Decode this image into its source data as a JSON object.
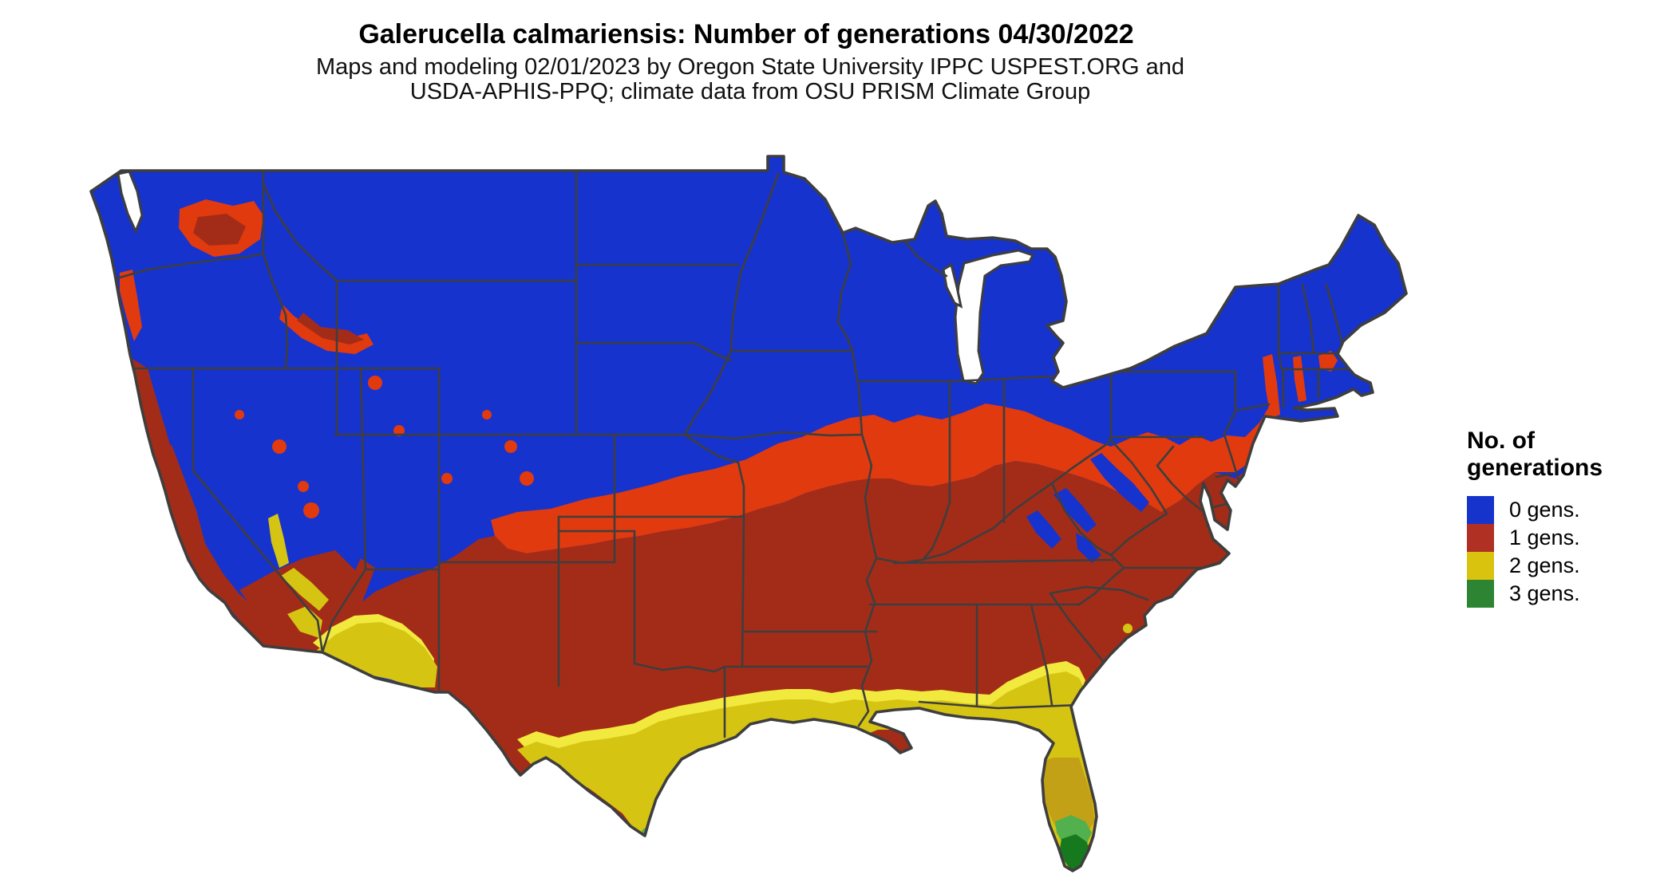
{
  "header": {
    "title": "Galerucella calmariensis: Number of generations 04/30/2022",
    "subtitle_line1": "Maps and modeling 02/01/2023 by Oregon State University IPPC USPEST.ORG and",
    "subtitle_line2": "USDA-APHIS-PPQ; climate data from OSU PRISM Climate Group"
  },
  "legend": {
    "title_line1": "No. of",
    "title_line2": "generations",
    "items": [
      {
        "label": "0 gens.",
        "value": 0,
        "color": "#1634cc"
      },
      {
        "label": "1 gens.",
        "value": 1,
        "color": "#b03123"
      },
      {
        "label": "2 gens.",
        "value": 2,
        "color": "#d9c30f"
      },
      {
        "label": "3 gens.",
        "value": 3,
        "color": "#2d8533"
      }
    ]
  },
  "map": {
    "kind": "categorical raster choropleth of continental United States",
    "colors": {
      "background": "#ffffff",
      "water": "#ffffff",
      "state_border": "#3e3e3e",
      "zero_gens_blue": "#1733cd",
      "transition_orange": "#e13a0e",
      "one_gen_red": "#a32c18",
      "two_gens_yellow": "#d6c413",
      "bright_yellow_fringe": "#f1e93d",
      "florida_olive": "#c3a116",
      "light_green_fringe": "#53b04e",
      "three_gens_green": "#16791d"
    },
    "regions": [
      {
        "class": "0 gens.",
        "color_key": "zero_gens_blue",
        "where": "Northern U.S., Rockies, Sierra Nevada, Cascades, upper Midwest, New England, Appalachian ridge patches"
      },
      {
        "class": "transition band",
        "color_key": "transition_orange",
        "where": "Band between 0 and 1 generation zones across the central U.S. and mid-Atlantic; Columbia Basin, Snake River Plain, Willamette Valley, Hudson/Connecticut valleys"
      },
      {
        "class": "1 gens.",
        "color_key": "one_gen_red",
        "where": "Southern and central U.S., California Central Valley and coast, desert Southwest"
      },
      {
        "class": "2 gens.",
        "color_key": "two_gens_yellow",
        "where": "South Texas, Gulf Coast strip, southern Arizona and California deserts, Florida and coastal Georgia"
      },
      {
        "class": "3 gens.",
        "color_key": "three_gens_green",
        "where": "Southern tip of Florida and extreme south Texas"
      }
    ]
  }
}
